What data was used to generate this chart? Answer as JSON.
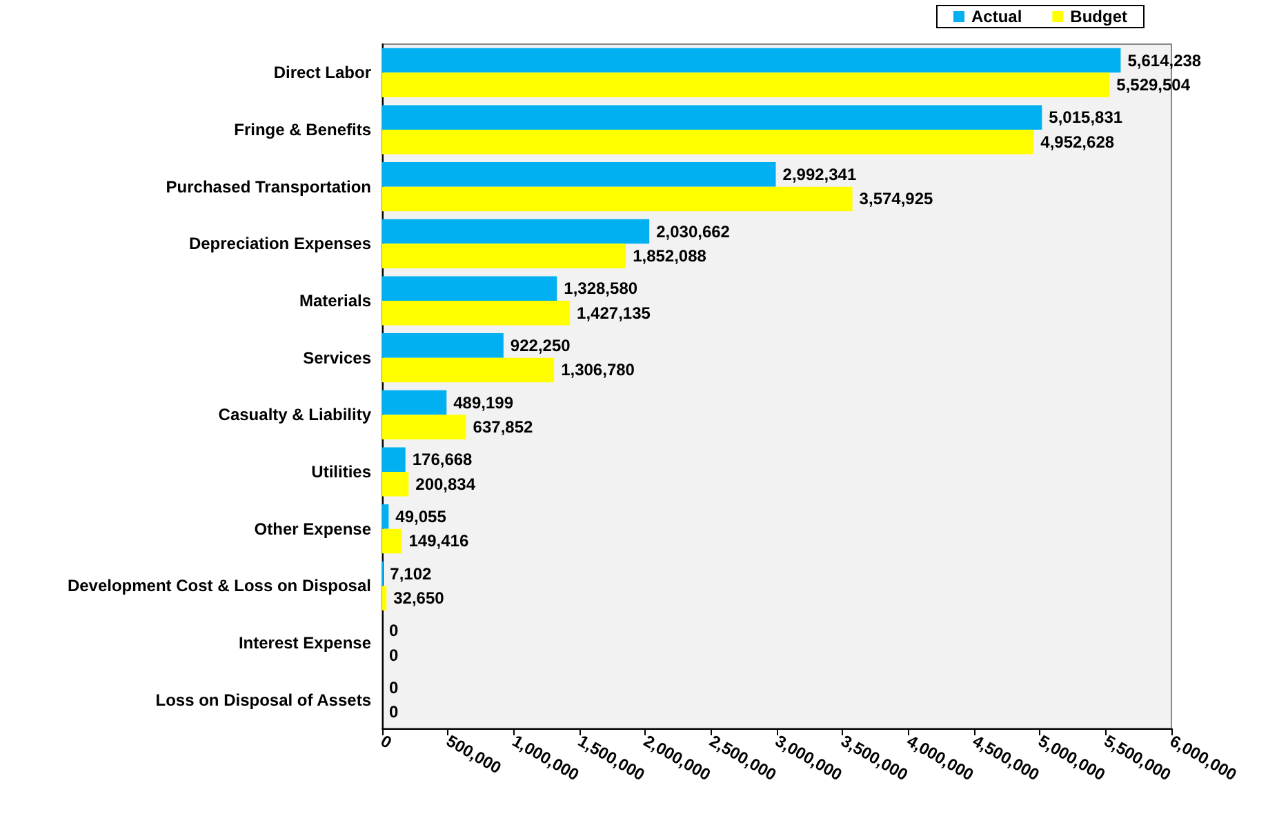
{
  "chart_data": {
    "type": "bar",
    "orientation": "horizontal",
    "categories": [
      "Direct Labor",
      "Fringe & Benefits",
      "Purchased Transportation",
      "Depreciation Expenses",
      "Materials",
      "Services",
      "Casualty & Liability",
      "Utilities",
      "Other Expense",
      "Development Cost & Loss on Disposal",
      "Interest Expense",
      "Loss on Disposal of Assets"
    ],
    "series": [
      {
        "name": "Actual",
        "color": "#00b0f0",
        "values": [
          5614238,
          5015831,
          2992341,
          2030662,
          1328580,
          922250,
          489199,
          176668,
          49055,
          7102,
          0,
          0
        ],
        "value_labels": [
          "5,614,238",
          "5,015,831",
          "2,992,341",
          "2,030,662",
          "1,328,580",
          "922,250",
          "489,199",
          "176,668",
          "49,055",
          "7,102",
          "0",
          "0"
        ]
      },
      {
        "name": "Budget",
        "color": "#ffff00",
        "values": [
          5529504,
          4952628,
          3574925,
          1852088,
          1427135,
          1306780,
          637852,
          200834,
          149416,
          32650,
          0,
          0
        ],
        "value_labels": [
          "5,529,504",
          "4,952,628",
          "3,574,925",
          "1,852,088",
          "1,427,135",
          "1,306,780",
          "637,852",
          "200,834",
          "149,416",
          "32,650",
          "0",
          "0"
        ]
      }
    ],
    "xlim": [
      0,
      6000000
    ],
    "xticks": [
      0,
      {
        "value": 500000,
        "label": "500,000"
      },
      {
        "value": 1000000,
        "label": "1,000,000"
      },
      {
        "value": 1500000,
        "label": "1,500,000"
      },
      {
        "value": 2000000,
        "label": "2,000,000"
      },
      {
        "value": 2500000,
        "label": "2,500,000"
      },
      {
        "value": 3000000,
        "label": "3,000,000"
      },
      {
        "value": 3500000,
        "label": "3,500,000"
      },
      {
        "value": 4000000,
        "label": "4,000,000"
      },
      {
        "value": 4500000,
        "label": "4,500,000"
      },
      {
        "value": 5000000,
        "label": "5,000,000"
      },
      {
        "value": 5500000,
        "label": "5,500,000"
      },
      {
        "value": 6000000,
        "label": "6,000,000"
      }
    ],
    "legend": "top right",
    "grid": false
  }
}
